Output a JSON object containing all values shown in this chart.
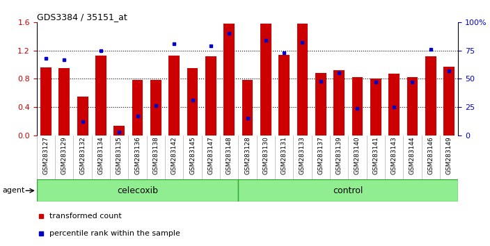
{
  "title": "GDS3384 / 35151_at",
  "categories": [
    "GSM283127",
    "GSM283129",
    "GSM283132",
    "GSM283134",
    "GSM283135",
    "GSM283136",
    "GSM283138",
    "GSM283142",
    "GSM283145",
    "GSM283147",
    "GSM283148",
    "GSM283128",
    "GSM283130",
    "GSM283131",
    "GSM283133",
    "GSM283137",
    "GSM283139",
    "GSM283140",
    "GSM283141",
    "GSM283143",
    "GSM283144",
    "GSM283146",
    "GSM283149"
  ],
  "bar_values": [
    0.96,
    0.95,
    0.55,
    1.13,
    0.13,
    0.78,
    0.78,
    1.13,
    0.95,
    1.12,
    1.58,
    0.78,
    1.58,
    1.14,
    1.58,
    0.88,
    0.92,
    0.82,
    0.8,
    0.87,
    0.82,
    1.12,
    0.97
  ],
  "percentile_pct": [
    68,
    67,
    12,
    75,
    3,
    17,
    26,
    81,
    31,
    79,
    90,
    15,
    84,
    73,
    82,
    48,
    55,
    24,
    47,
    25,
    47,
    76,
    57
  ],
  "group_labels": [
    "celecoxib",
    "control"
  ],
  "group_sizes": [
    11,
    12
  ],
  "bar_color": "#CC0000",
  "percentile_color": "#0000CC",
  "ylim_left": [
    0,
    1.6
  ],
  "yticks_left": [
    0,
    0.4,
    0.8,
    1.2,
    1.6
  ],
  "yticks_right_pct": [
    0,
    25,
    50,
    75,
    100
  ],
  "y2labels": [
    "0",
    "25",
    "50",
    "75",
    "100%"
  ],
  "agent_label": "agent",
  "legend_items": [
    "transformed count",
    "percentile rank within the sample"
  ],
  "background_color": "#ffffff",
  "tick_label_color_left": "#CC0000",
  "tick_label_color_right": "#0000CC",
  "group_color": "#90EE90",
  "group_border_color": "#33AA33",
  "xlabel_bg_color": "#C8C8C8"
}
